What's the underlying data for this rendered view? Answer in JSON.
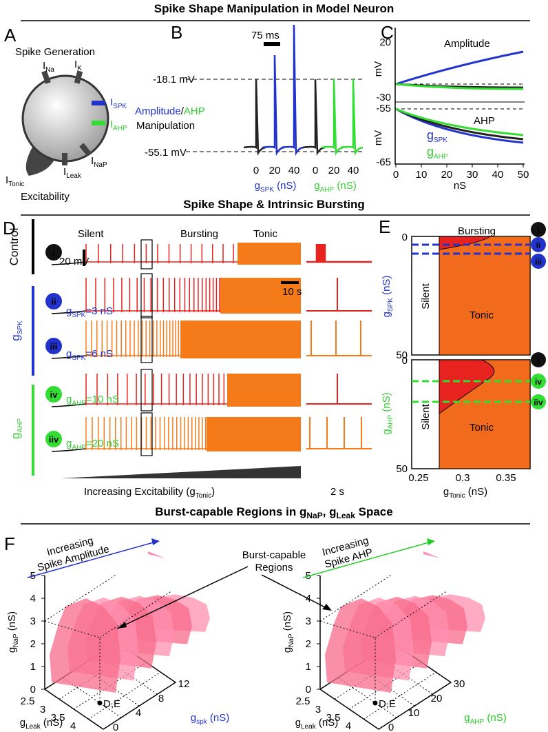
{
  "headings": {
    "top": "Spike Shape Manipulation in Model Neuron",
    "middle": "Spike Shape & Intrinsic Bursting",
    "bottom": [
      "Burst-capable Regions in g",
      "NaP",
      ", g",
      "Leak",
      " Space"
    ]
  },
  "panel_a": {
    "letter": "A",
    "spike_generation": "Spike Generation",
    "i_na": [
      "I",
      "Na"
    ],
    "i_k": [
      "I",
      "K"
    ],
    "i_spk": [
      "I",
      "SPK"
    ],
    "i_ahp": [
      "I",
      "AHP"
    ],
    "manipulation": [
      "Amplitude",
      "/",
      "AHP"
    ],
    "manipulation_2": "Manipulation",
    "i_leak": [
      "I",
      "Leak"
    ],
    "i_nap": [
      "I",
      "NaP"
    ],
    "i_tonic": [
      "I",
      "Tonic"
    ],
    "excitability": "Excitability"
  },
  "panel_b": {
    "letter": "B",
    "scale": "75 ms",
    "upper": "-18.1 mV",
    "lower": "-55.1 mV",
    "spk_ticks": [
      0,
      20,
      40
    ],
    "spk_label": [
      "g",
      "SPK",
      " (nS)"
    ],
    "ahp_ticks": [
      0,
      20,
      40
    ],
    "ahp_label": [
      "g",
      "AHP",
      " (nS)"
    ]
  },
  "panel_c": {
    "letter": "C",
    "top_title": "Amplitude",
    "top_ticks": [
      20,
      -30
    ],
    "y_label": "mV",
    "bottom_title": "AHP",
    "bottom_ticks": [
      -55,
      -65
    ],
    "legend_spk": [
      "g",
      "SPK"
    ],
    "legend_ahp": [
      "g",
      "AHP"
    ],
    "x_ticks": [
      0,
      10,
      20,
      30,
      40,
      50
    ],
    "x_label": "nS"
  },
  "panel_d": {
    "letter": "D",
    "silent": "Silent",
    "bursting": "Bursting",
    "tonic": "Tonic",
    "scale_v": "20 mV",
    "scale_t": "10 s",
    "control": "Control",
    "group_spk": [
      "g",
      "SPK"
    ],
    "group_ahp": [
      "g",
      "AHP"
    ],
    "markers": [
      "i",
      "ii",
      "iii",
      "iv",
      "iiv"
    ],
    "row_labels": [
      [
        "g",
        "SPK",
        "=3 nS"
      ],
      [
        "g",
        "SPK",
        "=6 nS"
      ],
      [
        "g",
        "AHP",
        "=10 nS"
      ],
      [
        "g",
        "AHP",
        "=20 nS"
      ]
    ],
    "axis": [
      "Increasing Excitability (g",
      "Tonic",
      ")"
    ],
    "snippet_scale": "2 s"
  },
  "panel_e": {
    "letter": "E",
    "bursting": "Bursting",
    "top_ticks": [
      0,
      50
    ],
    "top_label": [
      "g",
      "SPK",
      " (nS)"
    ],
    "top_silent": "Silent",
    "top_tonic": "Tonic",
    "top_markers": [
      "i",
      "ii",
      "iii"
    ],
    "bottom_ticks": [
      0,
      50
    ],
    "bottom_label": [
      "g",
      "AHP",
      " (nS)"
    ],
    "bottom_silent": "Silent",
    "bottom_tonic": "Tonic",
    "bottom_markers": [
      "i",
      "iv",
      "iiv"
    ],
    "x_ticks": [
      0.25,
      0.3,
      0.35
    ],
    "x_label": [
      "g",
      "Tonic",
      " (nS)"
    ]
  },
  "panel_f": {
    "letter": "F",
    "left_arrow": [
      "Increasing",
      "Spike Amplitude"
    ],
    "regions": [
      "Burst-capable",
      "Regions"
    ],
    "right_arrow": [
      "Increasing",
      "Spike AHP"
    ],
    "nap_ticks": [
      0,
      1,
      2,
      3,
      4,
      5
    ],
    "nap_label": [
      "g",
      "NaP",
      " (nS)"
    ],
    "leak_ticks": [
      2.5,
      3,
      3.5,
      4
    ],
    "leak_label": [
      "g",
      "Leak",
      " (nS)"
    ],
    "spk_ticks": [
      0,
      4,
      8,
      12
    ],
    "spk_label": [
      "g",
      "spk",
      " (nS)"
    ],
    "ahp_ticks": [
      0,
      10,
      20,
      30
    ],
    "ahp_label": [
      "g",
      "AHP",
      " (nS)"
    ],
    "point": "D,E"
  }
}
